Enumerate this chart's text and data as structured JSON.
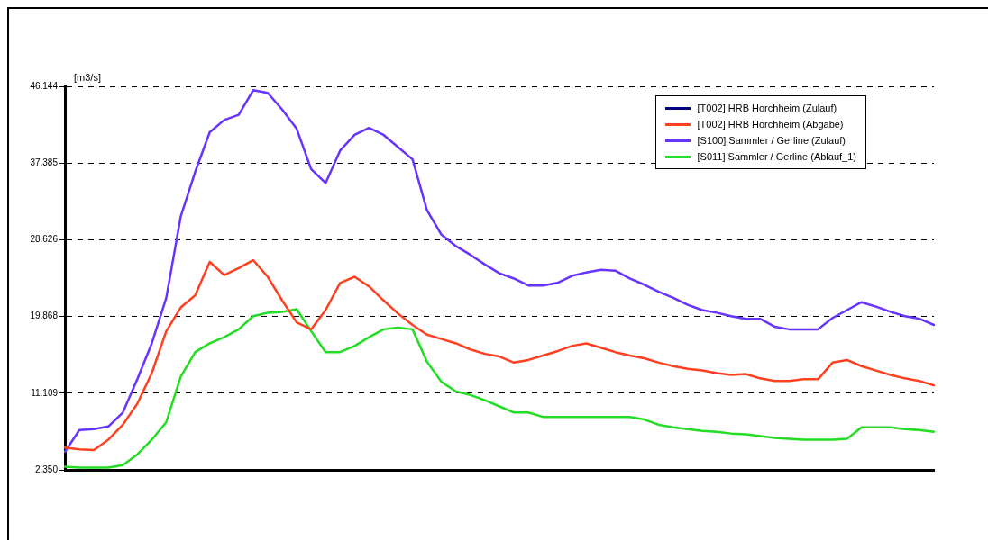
{
  "chart_data": {
    "type": "line",
    "ylabel": "[m3/s]",
    "categories": [
      null,
      null,
      null,
      null,
      null,
      null,
      null,
      null,
      null,
      null,
      null,
      null,
      null,
      null,
      null,
      null,
      null,
      null,
      null,
      null,
      null,
      null,
      null,
      null,
      null,
      null,
      null,
      null,
      null,
      null,
      null,
      null,
      null,
      null,
      null,
      null,
      null,
      null,
      null,
      null,
      null,
      null,
      null,
      null,
      null,
      null,
      null,
      null,
      null,
      null,
      null,
      null,
      null,
      null,
      null,
      null,
      null,
      null,
      null,
      null,
      null
    ],
    "ylim": [
      2.35,
      46.144
    ],
    "yticks": [
      {
        "value": 2.35,
        "label": "2.350"
      },
      11.109,
      19.868,
      28.626,
      37.385,
      46.144
    ],
    "grid": "y",
    "legend": "top right",
    "tick_labels": "y",
    "marker": "none",
    "line_style": "solid",
    "series": [
      {
        "name": "[T002] HRB Horchheim (Zulauf)",
        "color": "#000080",
        "values": [
          null,
          null,
          null,
          null,
          null,
          null,
          null,
          null,
          null,
          null,
          null,
          null,
          null,
          null,
          null,
          null,
          null,
          null,
          null,
          null,
          null,
          null,
          null,
          null,
          null,
          null,
          null,
          null,
          null,
          null,
          null,
          null,
          null,
          null,
          null,
          null,
          null,
          null,
          null,
          null,
          null,
          null,
          null,
          null,
          null,
          null,
          null,
          null,
          null,
          null,
          null,
          null,
          null,
          null,
          null,
          null,
          null,
          null,
          null,
          null,
          null
        ]
      },
      {
        "name": "[T002] HRB Horchheim (Abgabe)",
        "color": "#ff4020",
        "values": [
          4.9,
          4.7,
          4.6,
          5.8,
          7.5,
          9.9,
          13.4,
          18.2,
          20.9,
          22.3,
          26.1,
          24.6,
          25.4,
          26.3,
          24.4,
          21.7,
          19.2,
          18.4,
          20.6,
          23.7,
          24.4,
          23.3,
          21.7,
          20.2,
          18.9,
          17.8,
          17.3,
          16.8,
          16.1,
          15.6,
          15.3,
          14.6,
          14.9,
          15.4,
          15.9,
          16.5,
          16.8,
          16.3,
          15.8,
          15.4,
          15.1,
          14.6,
          14.2,
          13.9,
          13.7,
          13.4,
          13.2,
          13.3,
          12.8,
          12.5,
          12.5,
          12.7,
          12.7,
          14.6,
          14.9,
          14.2,
          13.7,
          13.2,
          12.8,
          12.5,
          12.0
        ]
      },
      {
        "name": "[S100] Sammler / Gerline (Zulauf)",
        "color": "#6633ff",
        "values": [
          4.4,
          6.9,
          7.0,
          7.3,
          8.9,
          12.7,
          16.8,
          22.0,
          31.3,
          36.4,
          40.9,
          42.3,
          42.9,
          45.7,
          45.4,
          43.5,
          41.3,
          36.7,
          35.1,
          38.8,
          40.6,
          41.4,
          40.6,
          39.2,
          37.8,
          32.0,
          29.2,
          27.9,
          26.9,
          25.8,
          24.8,
          24.2,
          23.4,
          23.4,
          23.7,
          24.5,
          24.9,
          25.2,
          25.1,
          24.2,
          23.5,
          22.7,
          22.0,
          21.2,
          20.6,
          20.3,
          19.9,
          19.6,
          19.6,
          18.7,
          18.4,
          18.4,
          18.4,
          19.7,
          20.6,
          21.5,
          21.0,
          20.4,
          19.9,
          19.6,
          18.9
        ]
      },
      {
        "name": "[S011] Sammler / Gerline (Ablauf_1)",
        "color": "#22dd22",
        "values": [
          2.7,
          2.6,
          2.6,
          2.6,
          2.9,
          4.1,
          5.8,
          7.8,
          13.0,
          15.8,
          16.8,
          17.5,
          18.4,
          19.9,
          20.3,
          20.4,
          20.7,
          18.2,
          15.8,
          15.8,
          16.5,
          17.5,
          18.4,
          18.6,
          18.4,
          14.7,
          12.4,
          11.3,
          10.9,
          10.3,
          9.6,
          8.9,
          8.9,
          8.4,
          8.4,
          8.4,
          8.4,
          8.4,
          8.4,
          8.4,
          8.1,
          7.5,
          7.2,
          7.0,
          6.8,
          6.7,
          6.5,
          6.4,
          6.2,
          6.0,
          5.9,
          5.8,
          5.8,
          5.8,
          5.9,
          7.2,
          7.2,
          7.2,
          7.0,
          6.9,
          6.7
        ]
      }
    ]
  }
}
